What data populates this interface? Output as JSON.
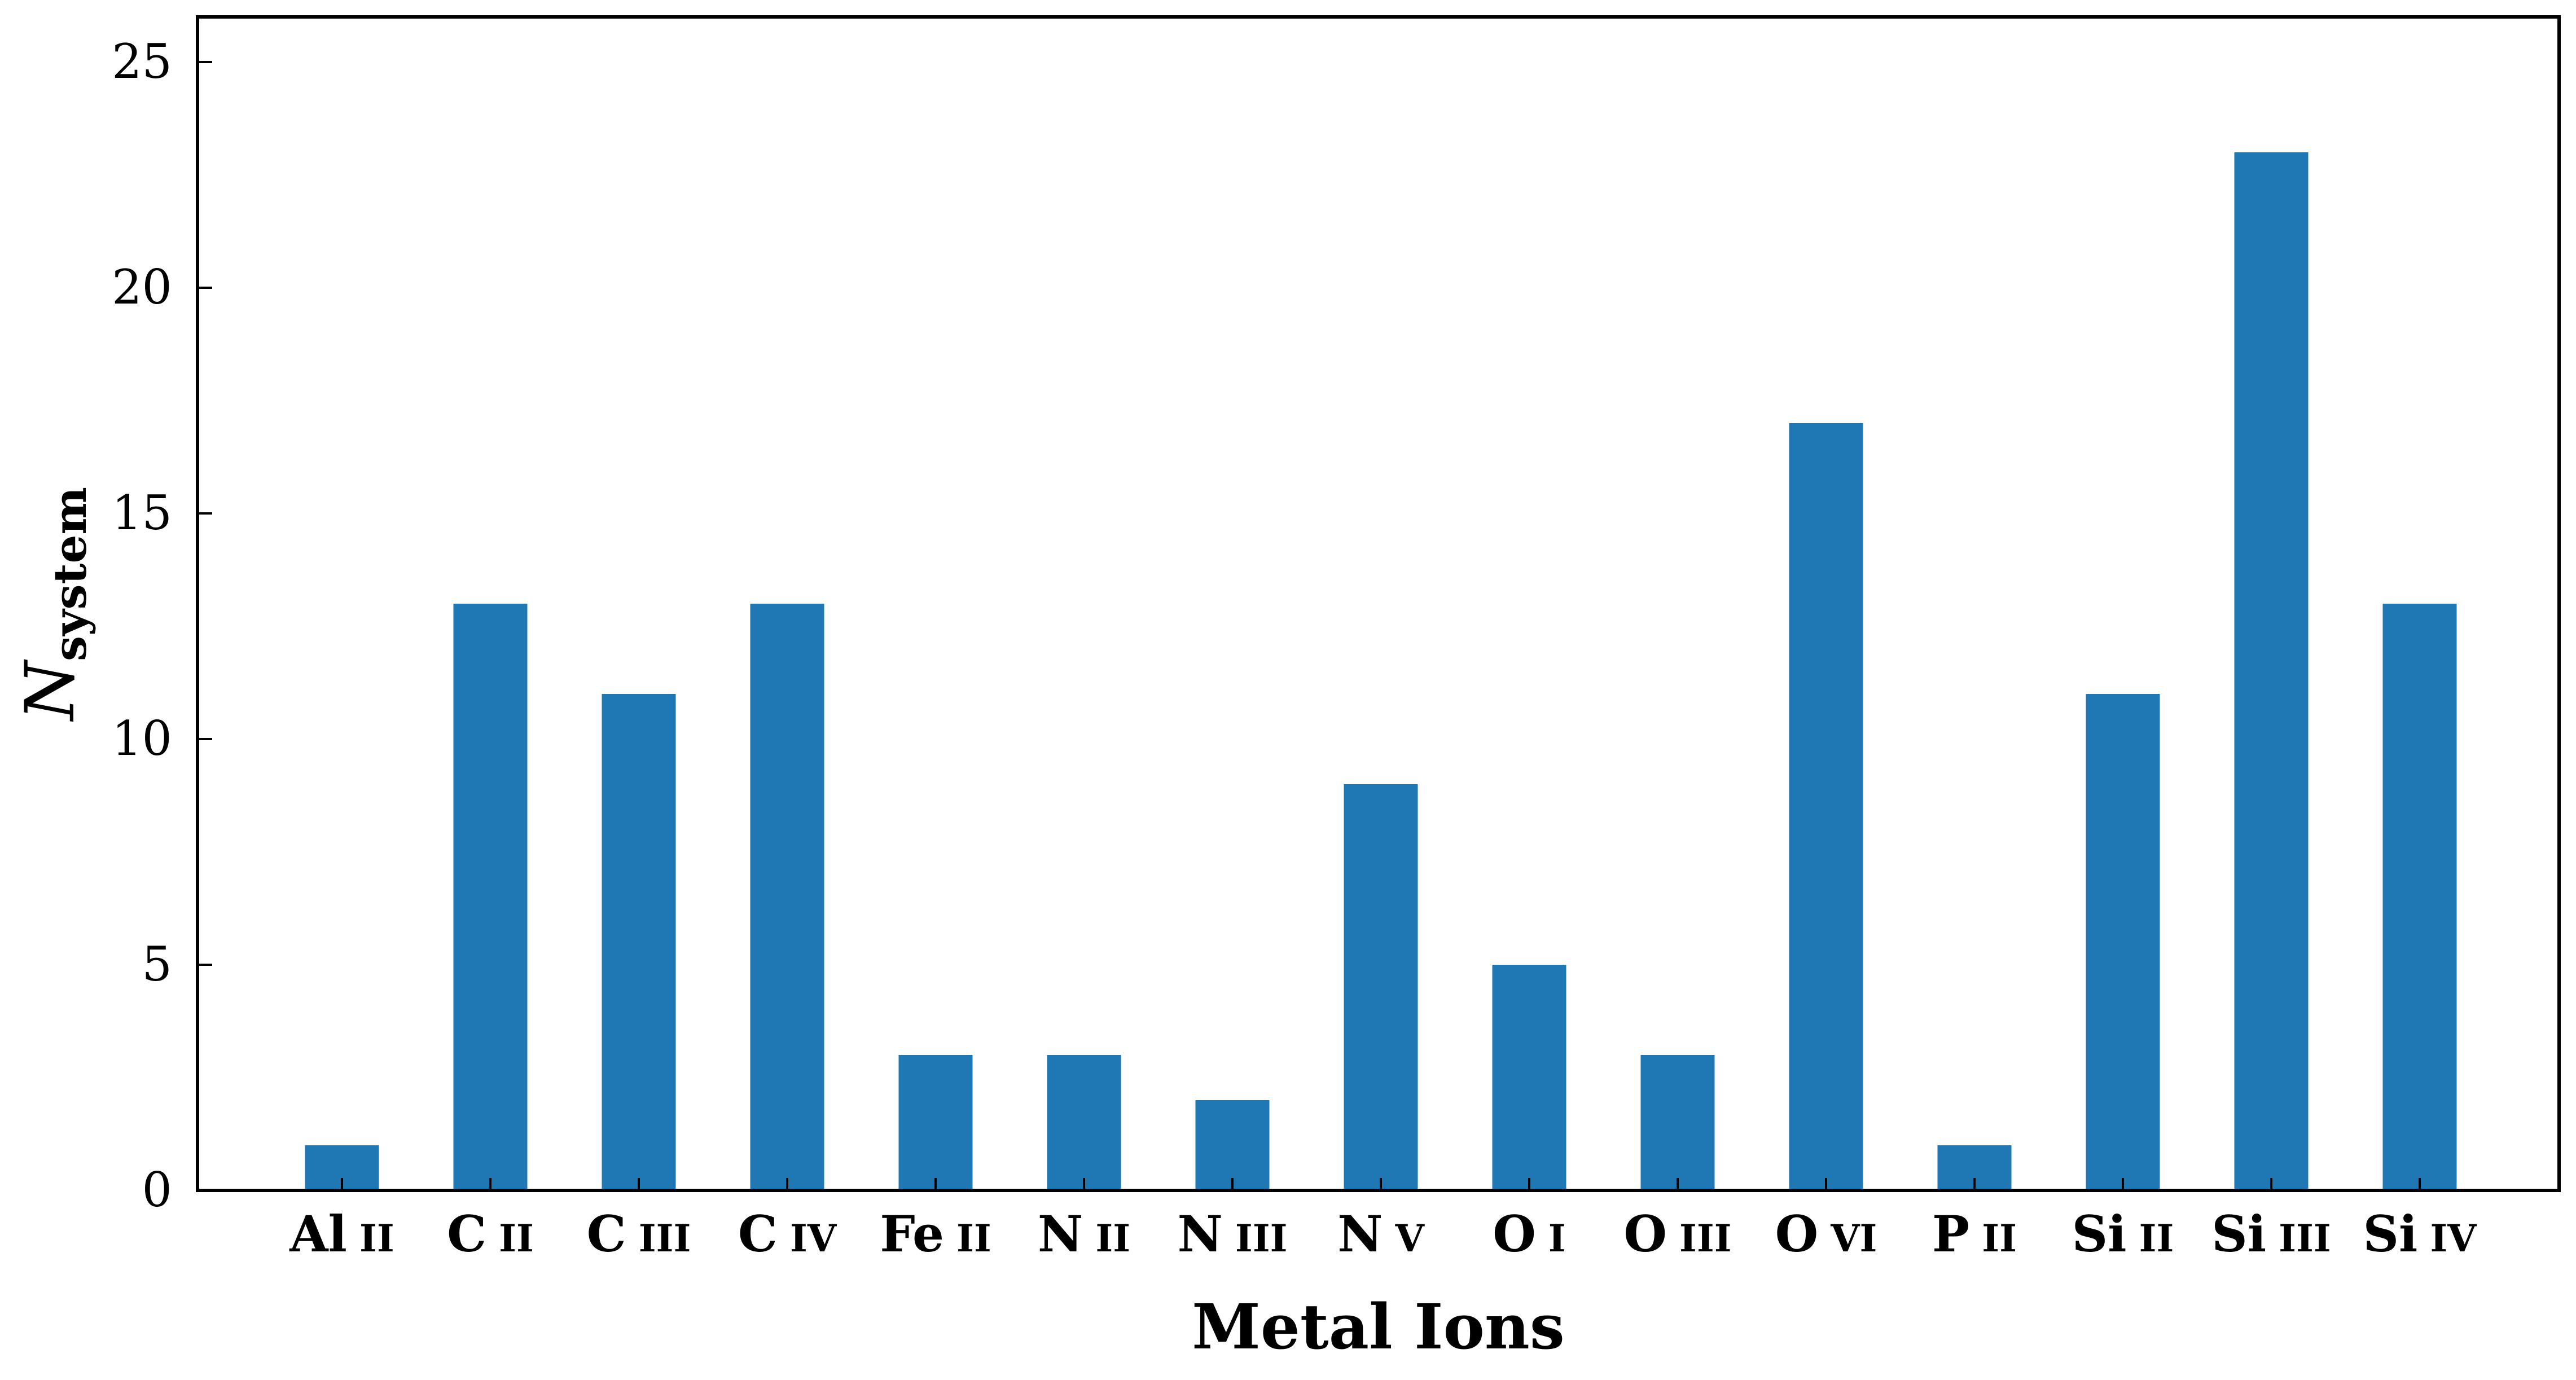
{
  "chart_data": {
    "type": "bar",
    "categories": [
      {
        "element": "Al",
        "ion": "II"
      },
      {
        "element": "C",
        "ion": "II"
      },
      {
        "element": "C",
        "ion": "III"
      },
      {
        "element": "C",
        "ion": "IV"
      },
      {
        "element": "Fe",
        "ion": "II"
      },
      {
        "element": "N",
        "ion": "II"
      },
      {
        "element": "N",
        "ion": "III"
      },
      {
        "element": "N",
        "ion": "V"
      },
      {
        "element": "O",
        "ion": "I"
      },
      {
        "element": "O",
        "ion": "III"
      },
      {
        "element": "O",
        "ion": "VI"
      },
      {
        "element": "P",
        "ion": "II"
      },
      {
        "element": "Si",
        "ion": "II"
      },
      {
        "element": "Si",
        "ion": "III"
      },
      {
        "element": "Si",
        "ion": "IV"
      }
    ],
    "values": [
      1,
      13,
      11,
      13,
      3,
      3,
      2,
      9,
      5,
      3,
      17,
      1,
      11,
      23,
      13
    ],
    "xlabel": "Metal Ions",
    "ylabel": {
      "main": "N",
      "sub": "system"
    },
    "ylim": [
      0,
      26
    ],
    "yticks": [
      0,
      5,
      10,
      15,
      20,
      25
    ],
    "grid": false,
    "bar_color": "#1f77b4"
  }
}
